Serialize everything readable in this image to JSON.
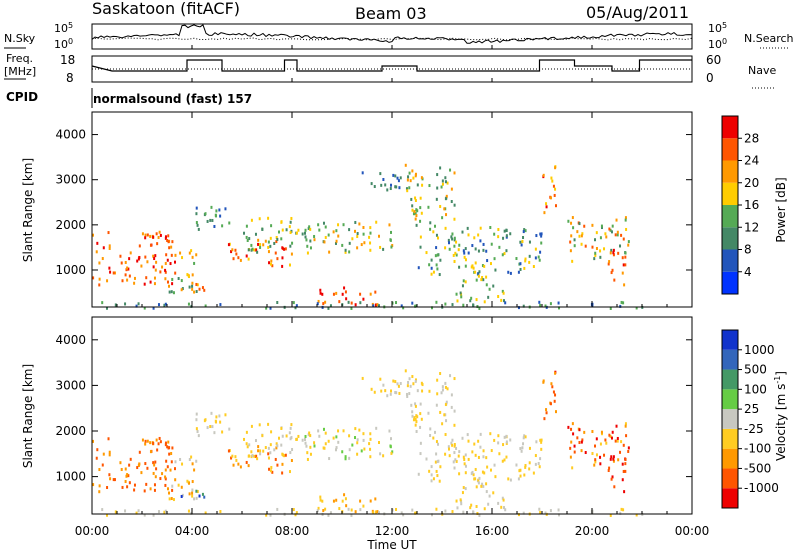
{
  "header": {
    "station": "Saskatoon (fitACF)",
    "beam": "Beam 03",
    "date": "05/Aug/2011"
  },
  "labels": {
    "nsky": "N.Sky",
    "nsearch": "N.Search",
    "freq_line1": "Freq.",
    "freq_line2": "[MHz]",
    "nave": "Nave",
    "cpid": "CPID",
    "cpid_value": "normalsound (fast) 157"
  },
  "noise_axis": {
    "left_top": "10^5",
    "left_bottom": "10^0",
    "right_top": "10^5",
    "right_bottom": "10^0"
  },
  "freq_axis": {
    "left_ticks": [
      "18",
      "8"
    ],
    "right_ticks": [
      "60",
      "0"
    ]
  },
  "colors": {
    "power_scale": [
      "#0033ff",
      "#2255bb",
      "#448866",
      "#55aa55",
      "#ffcc00",
      "#ff9900",
      "#ff5500",
      "#ee0000"
    ],
    "velocity_scale": [
      "#1133cc",
      "#3366bb",
      "#449966",
      "#66cc44",
      "#c8c8c0",
      "#ffcc22",
      "#ff9900",
      "#ff5500",
      "#ee0000"
    ]
  },
  "chart_data": [
    {
      "type": "heatmap",
      "title": "",
      "ylabel": "Slant Range [km]",
      "xlabel": "",
      "yticks": [
        "1000",
        "2000",
        "3000",
        "4000"
      ],
      "ylim": [
        180,
        4500
      ],
      "colorbar": {
        "label": "Power [dB]",
        "ticks": [
          "4",
          "8",
          "12",
          "16",
          "20",
          "24",
          "28"
        ],
        "range": [
          0,
          30
        ]
      }
    },
    {
      "type": "heatmap",
      "title": "",
      "ylabel": "Slant Range [km]",
      "xlabel": "Time UT",
      "xticks": [
        "00:00",
        "04:00",
        "08:00",
        "12:00",
        "16:00",
        "20:00",
        "00:00"
      ],
      "yticks": [
        "1000",
        "2000",
        "3000",
        "4000"
      ],
      "ylim": [
        180,
        4500
      ],
      "colorbar": {
        "label": "Velocity [m s^-1]",
        "ticks": [
          "1000",
          "500",
          "100",
          "25",
          "-25",
          "-100",
          "-500",
          "-1000"
        ]
      }
    }
  ]
}
